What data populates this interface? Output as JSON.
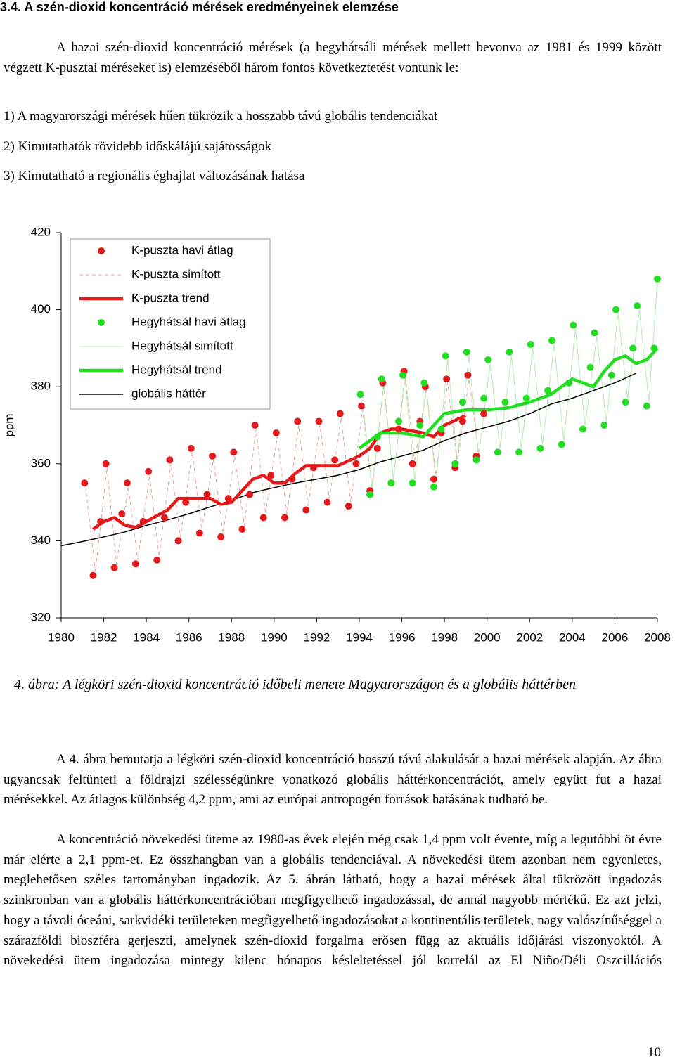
{
  "heading": "3.4. A szén-dioxid koncentráció mérések eredményeinek elemzése",
  "intro": "A hazai szén-dioxid koncentráció mérések (a hegyhátsáli mérések mellett bevonva az 1981 és 1999 között végzett K-pusztai méréseket is) elemzéséből három fontos következtetést vontunk le:",
  "list": [
    "1) A magyarországi mérések hűen tükrözik a hosszabb távú globális tendenciákat",
    "2) Kimutathatók rövidebb időskálájú sajátosságok",
    "3) Kimutatható a regionális éghajlat változásának hatása"
  ],
  "chart_data": {
    "type": "line",
    "ylabel": "ppm",
    "xlim": [
      1980,
      2008
    ],
    "xticks": [
      1980,
      1982,
      1984,
      1986,
      1988,
      1990,
      1992,
      1994,
      1996,
      1998,
      2000,
      2002,
      2004,
      2006,
      2008
    ],
    "ylim": [
      320,
      420
    ],
    "yticks": [
      320,
      340,
      360,
      380,
      400,
      420
    ],
    "series": [
      {
        "name": "K-puszta havi átlag",
        "color": "#e31a1c",
        "style": "dots",
        "x": [
          1981.1,
          1981.5,
          1981.85,
          1982.1,
          1982.5,
          1982.85,
          1983.1,
          1983.5,
          1983.85,
          1984.1,
          1984.5,
          1984.85,
          1985.1,
          1985.5,
          1985.85,
          1986.1,
          1986.5,
          1986.85,
          1987.1,
          1987.5,
          1987.85,
          1988.1,
          1988.5,
          1988.85,
          1989.1,
          1989.5,
          1989.85,
          1990.1,
          1990.5,
          1990.85,
          1991.1,
          1991.5,
          1991.85,
          1992.1,
          1992.5,
          1992.85,
          1993.1,
          1993.5,
          1993.85,
          1994.1,
          1994.5,
          1994.85,
          1995.1,
          1995.5,
          1995.85,
          1996.1,
          1996.5,
          1996.85,
          1997.1,
          1997.5,
          1997.85,
          1998.1,
          1998.5,
          1998.85,
          1999.1,
          1999.5,
          1999.85
        ],
        "values": [
          355,
          331,
          345,
          360,
          333,
          347,
          355,
          334,
          345,
          358,
          335,
          346,
          361,
          340,
          350,
          364,
          342,
          352,
          362,
          341,
          351,
          363,
          343,
          352,
          370,
          346,
          357,
          368,
          346,
          356,
          371,
          348,
          359,
          371,
          350,
          361,
          373,
          349,
          360,
          375,
          353,
          364,
          381,
          355,
          369,
          384,
          360,
          371,
          380,
          356,
          368,
          382,
          359,
          371,
          383,
          362,
          373
        ]
      },
      {
        "name": "K-puszta simított",
        "color": "#e8a0a0",
        "style": "dashed",
        "x": [
          1981.15,
          1981.6,
          1982.15,
          1982.6,
          1983.15,
          1983.6,
          1984.15,
          1984.6,
          1985.15,
          1985.6,
          1986.15,
          1986.6,
          1987.15,
          1987.6,
          1988.15,
          1988.6,
          1989.15,
          1989.6,
          1990.15,
          1990.6,
          1991.15,
          1991.6,
          1992.15,
          1992.6,
          1993.15,
          1993.6,
          1994.15,
          1994.6,
          1995.15,
          1995.6,
          1996.15,
          1996.6,
          1997.15,
          1997.6,
          1998.15,
          1998.6,
          1999.15,
          1999.6
        ],
        "values": [
          354,
          332,
          359,
          334,
          354,
          335,
          357,
          336,
          360,
          341,
          363,
          343,
          361,
          342,
          362,
          344,
          369,
          347,
          367,
          347,
          370,
          349,
          370,
          351,
          372,
          350,
          374,
          354,
          380,
          356,
          383,
          361,
          379,
          357,
          381,
          360,
          382,
          363
        ]
      },
      {
        "name": "K-puszta trend",
        "color": "#e31a1c",
        "style": "thick",
        "x": [
          1981.5,
          1982,
          1982.5,
          1983,
          1983.5,
          1984,
          1985,
          1985.5,
          1986,
          1987,
          1987.5,
          1988,
          1989,
          1989.5,
          1990,
          1990.5,
          1991,
          1991.5,
          1992,
          1993,
          1994,
          1994.5,
          1995,
          1995.5,
          1996,
          1997,
          1997.5,
          1998,
          1999
        ],
        "values": [
          343,
          345,
          346,
          344,
          343.5,
          345,
          348,
          351,
          351,
          351,
          349.5,
          350,
          356,
          357,
          355,
          355,
          357.5,
          359.5,
          359.5,
          359.5,
          362,
          364,
          368,
          369,
          369,
          368,
          367,
          370,
          372.5
        ]
      },
      {
        "name": "Hegyhátsál havi átlag",
        "color": "#22dd22",
        "style": "dots",
        "x": [
          1994.05,
          1994.5,
          1994.85,
          1995.05,
          1995.5,
          1995.85,
          1996.05,
          1996.5,
          1996.85,
          1997.05,
          1997.5,
          1997.85,
          1998.05,
          1998.5,
          1998.85,
          1999.05,
          1999.5,
          1999.85,
          2000.05,
          2000.5,
          2000.85,
          2001.05,
          2001.5,
          2001.85,
          2002.05,
          2002.5,
          2002.85,
          2003.05,
          2003.5,
          2003.85,
          2004.05,
          2004.5,
          2004.85,
          2005.05,
          2005.5,
          2005.85,
          2006.05,
          2006.5,
          2006.85,
          2007.05,
          2007.5,
          2007.85,
          2008
        ],
        "values": [
          378,
          352,
          367,
          382,
          355,
          371,
          383,
          355,
          370,
          381,
          354,
          369,
          388,
          360,
          376,
          389,
          361,
          377,
          387,
          363,
          376,
          389,
          363,
          377,
          391,
          364,
          379,
          392,
          365,
          381,
          396,
          369,
          385,
          394,
          370,
          383,
          400,
          376,
          390,
          401,
          375,
          390,
          408
        ]
      },
      {
        "name": "Hegyhátsál simított",
        "color": "#b8e8b8",
        "style": "thin",
        "x": [
          1994.15,
          1994.6,
          1995.15,
          1995.6,
          1996.15,
          1996.6,
          1997.15,
          1997.6,
          1998.15,
          1998.6,
          1999.15,
          1999.6,
          2000.15,
          2000.6,
          2001.15,
          2001.6,
          2002.15,
          2002.6,
          2003.15,
          2003.6,
          2004.15,
          2004.6,
          2005.15,
          2005.6,
          2006.15,
          2006.6,
          2007.15,
          2007.6,
          2008
        ],
        "values": [
          377,
          353,
          381,
          356,
          382,
          356,
          380,
          355,
          387,
          361,
          388,
          362,
          386,
          364,
          388,
          364,
          390,
          365,
          391,
          366,
          395,
          370,
          393,
          371,
          399,
          377,
          400,
          376,
          407
        ]
      },
      {
        "name": "Hegyhátsál trend",
        "color": "#22dd22",
        "style": "thick",
        "x": [
          1994,
          1995,
          1996,
          1997,
          1998,
          1999,
          2000,
          2001,
          2002,
          2003,
          2004,
          2005,
          2005.5,
          2006,
          2006.5,
          2007,
          2007.5,
          2008
        ],
        "values": [
          364,
          368,
          368,
          367,
          373,
          374,
          374,
          374.5,
          376,
          378,
          382,
          380,
          384,
          387,
          388,
          386,
          387,
          390
        ]
      },
      {
        "name": "globális háttér",
        "color": "#000000",
        "style": "thin",
        "x": [
          1980,
          1981,
          1982,
          1983,
          1984,
          1985,
          1986,
          1987,
          1988,
          1989,
          1990,
          1991,
          1992,
          1993,
          1994,
          1995,
          1996,
          1997,
          1998,
          1999,
          2000,
          2001,
          2002,
          2003,
          2004,
          2005,
          2006,
          2007
        ],
        "values": [
          338.7,
          339.8,
          341,
          342.3,
          344,
          345.4,
          347,
          348.8,
          350.5,
          352.5,
          353.8,
          355,
          356,
          357,
          358.5,
          360.5,
          362,
          363.5,
          366,
          368,
          369.5,
          371,
          373,
          375.5,
          377,
          379,
          381,
          383.5
        ]
      }
    ]
  },
  "caption": "4. ábra: A légköri szén-dioxid koncentráció időbeli menete Magyarországon és a globális háttérben",
  "paragraphs": [
    "A 4. ábra bemutatja a légköri szén-dioxid koncentráció hosszú távú alakulását a hazai mérések alapján. Az ábra ugyancsak feltünteti a földrajzi szélességünkre vonatkozó globális háttérkoncentrációt, amely együtt fut a hazai mérésekkel. Az átlagos különbség 4,2 ppm, ami az európai antropogén források hatásának tudható be.",
    "A koncentráció növekedési üteme az 1980-as évek elején még csak 1,4 ppm volt évente, míg a legutóbbi öt évre már elérte a 2,1 ppm-et. Ez összhangban van a globális tendenciával. A növekedési ütem azonban nem egyenletes, meglehetősen széles tartományban ingadozik. Az 5. ábrán látható, hogy a hazai mérések által tükrözött ingadozás szinkronban van a globális háttérkoncentrációban megfigyelhető ingadozással, de annál nagyobb mértékű. Ez azt jelzi, hogy a távoli óceáni, sarkvidéki területeken megfigyelhető ingadozásokat a kontinentális területek, nagy valószínűséggel a szárazföldi bioszféra gerjeszti, amelynek szén-dioxid forgalma erősen függ az aktuális időjárási viszonyoktól. A növekedési ütem ingadozása mintegy kilenc hónapos késleltetéssel jól korrelál az El Niño/Déli Oszcillációs"
  ],
  "page_number": "10"
}
